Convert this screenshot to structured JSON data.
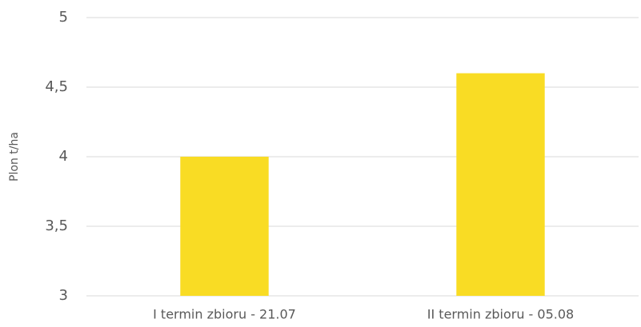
{
  "chart_data": {
    "type": "bar",
    "y_label": "Plon t/ha",
    "categories": [
      "I termin zbioru - 21.07",
      "II termin zbioru - 05.08"
    ],
    "values": [
      4.0,
      4.6
    ],
    "color": "#f9dc24",
    "ylim": [
      3,
      5
    ],
    "yticks": [
      3,
      {
        "value": 3.5,
        "label": "3,5"
      },
      4,
      {
        "value": 4.5,
        "label": "4,5"
      },
      5
    ],
    "grid": true
  }
}
